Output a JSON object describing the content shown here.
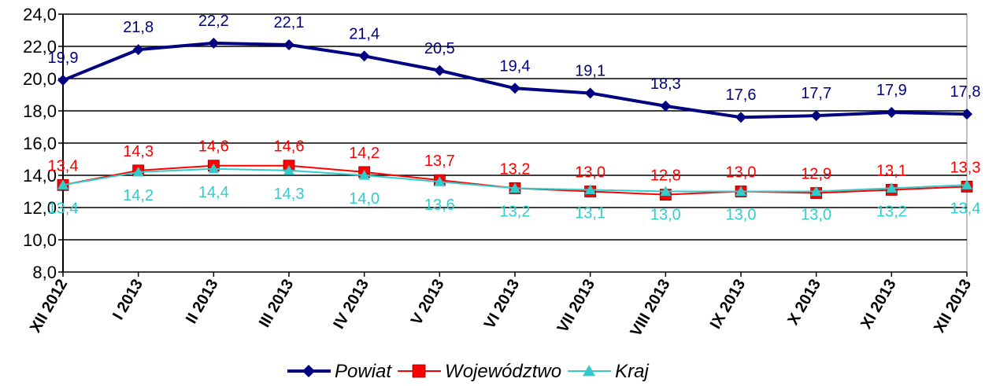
{
  "chart_data": {
    "type": "line",
    "title": "",
    "xlabel": "",
    "ylabel": "",
    "categories": [
      "XII 2012",
      "I 2013",
      "II 2013",
      "III 2013",
      "IV 2013",
      "V 2013",
      "VI 2013",
      "VII 2013",
      "VIII 2013",
      "IX 2013",
      "X 2013",
      "XI 2013",
      "XII 2013"
    ],
    "ylim": [
      8.0,
      24.0
    ],
    "yticks": [
      "8,0",
      "10,0",
      "12,0",
      "14,0",
      "16,0",
      "18,0",
      "20,0",
      "22,0",
      "24,0"
    ],
    "grid": true,
    "legend_position": "bottom",
    "series": [
      {
        "name": "Powiat",
        "color": "#000080",
        "marker": "diamond",
        "values": [
          19.9,
          21.8,
          22.2,
          22.1,
          21.4,
          20.5,
          19.4,
          19.1,
          18.3,
          17.6,
          17.7,
          17.9,
          17.8
        ],
        "labels": [
          "19,9",
          "21,8",
          "22,2",
          "22,1",
          "21,4",
          "20,5",
          "19,4",
          "19,1",
          "18,3",
          "17,6",
          "17,7",
          "17,9",
          "17,8"
        ]
      },
      {
        "name": "Województwo",
        "color": "#ff0000",
        "marker": "square",
        "values": [
          13.4,
          14.3,
          14.6,
          14.6,
          14.2,
          13.7,
          13.2,
          13.0,
          12.8,
          13.0,
          12.9,
          13.1,
          13.3
        ],
        "labels": [
          "13,4",
          "14,3",
          "14,6",
          "14,6",
          "14,2",
          "13,7",
          "13,2",
          "13,0",
          "12,8",
          "13,0",
          "12,9",
          "13,1",
          "13,3"
        ]
      },
      {
        "name": "Kraj",
        "color": "#33cccc",
        "marker": "triangle",
        "values": [
          13.4,
          14.2,
          14.4,
          14.3,
          14.0,
          13.6,
          13.2,
          13.1,
          13.0,
          13.0,
          13.0,
          13.2,
          13.4
        ],
        "labels": [
          "13,4",
          "14,2",
          "14,4",
          "14,3",
          "14,0",
          "13,6",
          "13,2",
          "13,1",
          "13,0",
          "13,0",
          "13,0",
          "13,2",
          "13,4"
        ]
      }
    ]
  }
}
